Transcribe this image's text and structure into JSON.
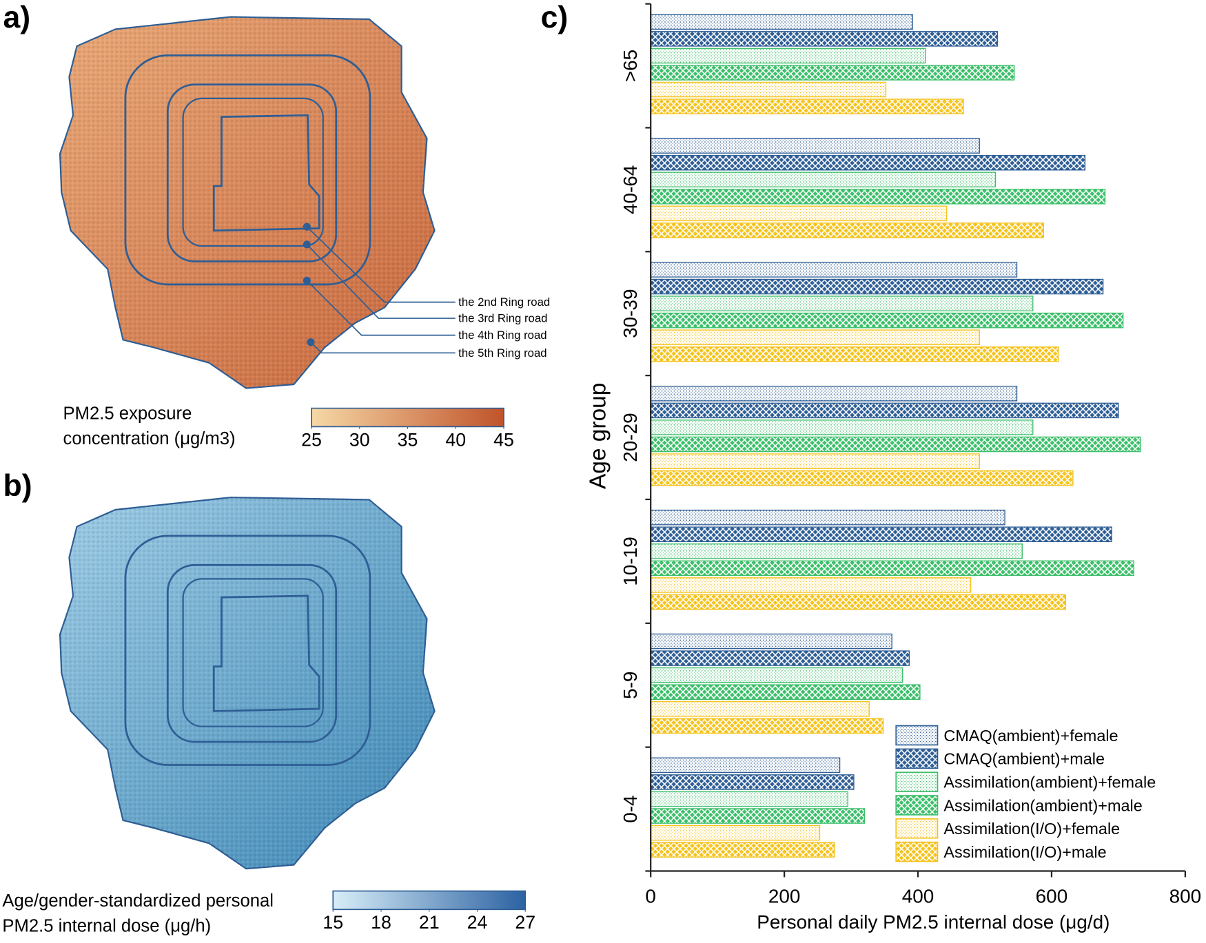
{
  "maps": {
    "a": {
      "panel_label": "a)",
      "ring_labels": [
        "the 2nd Ring road",
        "the 3rd Ring road",
        "the 4th Ring road",
        "the 5th Ring road"
      ],
      "colorbar": {
        "title": [
          "PM2.5  exposure",
          "concentration (μg/m3)"
        ],
        "lim": [
          25,
          45
        ],
        "ticks": [
          25,
          30,
          35,
          40,
          45
        ],
        "colors": [
          "#f6d8a6",
          "#c0532a"
        ]
      }
    },
    "b": {
      "panel_label": "b)",
      "colorbar": {
        "title": [
          "Age/gender-standardized personal",
          "PM2.5 internal dose (μg/h)"
        ],
        "lim": [
          15,
          27
        ],
        "ticks": [
          15,
          18,
          21,
          24,
          27
        ],
        "colors": [
          "#d8eef8",
          "#2c62a2"
        ]
      }
    }
  },
  "chart_data": {
    "type": "barh",
    "panel_label": "c)",
    "xlabel": "Personal daily PM2.5 internal dose (μg/d)",
    "ylabel": "Age group",
    "categories": [
      "0-4",
      "5-9",
      "10-19",
      "20-29",
      "30-39",
      "40-64",
      ">65"
    ],
    "xlim": [
      0,
      800
    ],
    "xticks": [
      0,
      200,
      400,
      600,
      800
    ],
    "legend": "lower right",
    "series": [
      {
        "name": "CMAQ(ambient)+female",
        "color": "#2e5e95",
        "pattern": "dots",
        "values": [
          283,
          361,
          530,
          548,
          548,
          492,
          392
        ]
      },
      {
        "name": "CMAQ(ambient)+male",
        "color": "#2e5e95",
        "pattern": "crosshatch",
        "values": [
          304,
          387,
          690,
          700,
          677,
          650,
          519
        ]
      },
      {
        "name": "Assimilation(ambient)+female",
        "color": "#3cbf6a",
        "pattern": "dots",
        "values": [
          295,
          377,
          556,
          572,
          572,
          516,
          411
        ]
      },
      {
        "name": "Assimilation(ambient)+male",
        "color": "#3cbf6a",
        "pattern": "crosshatch",
        "values": [
          320,
          403,
          723,
          733,
          707,
          680,
          544
        ]
      },
      {
        "name": "Assimilation(I/O)+female",
        "color": "#f5c31c",
        "pattern": "dots",
        "values": [
          253,
          327,
          479,
          492,
          492,
          443,
          352
        ]
      },
      {
        "name": "Assimilation(I/O)+male",
        "color": "#f5c31c",
        "pattern": "crosshatch",
        "values": [
          275,
          348,
          621,
          632,
          610,
          588,
          468
        ]
      }
    ]
  }
}
